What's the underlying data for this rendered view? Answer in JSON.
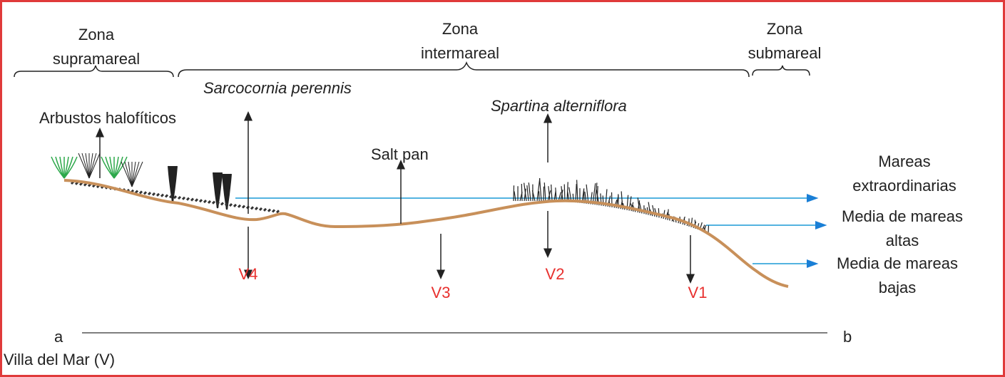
{
  "zones": [
    {
      "lines": [
        "Zona",
        "supramareal"
      ]
    },
    {
      "lines": [
        "Zona",
        "intermareal"
      ]
    },
    {
      "lines": [
        "Zona",
        "submareal"
      ]
    }
  ],
  "species": [
    "Sarcocornia perennis",
    "Spartina alterniflora"
  ],
  "vegetation_label": "Arbustos halofíticos",
  "feature": "Salt pan",
  "tide_levels": [
    {
      "lines": [
        "Mareas",
        "extraordinarias"
      ]
    },
    {
      "lines": [
        "Media de mareas",
        "altas"
      ]
    },
    {
      "lines": [
        "Media de mareas",
        "bajas"
      ]
    }
  ],
  "stations": [
    "V4",
    "V3",
    "V2",
    "V1"
  ],
  "transect": {
    "start": "a",
    "end": "b"
  },
  "site": "Villa del Mar (V)"
}
